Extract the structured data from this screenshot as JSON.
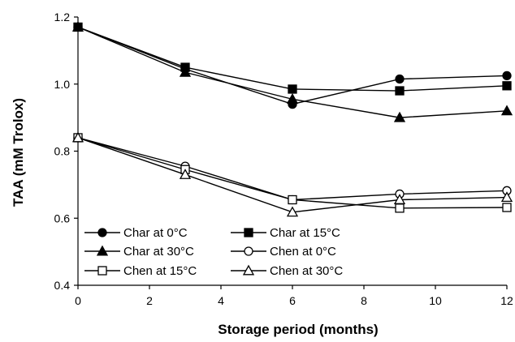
{
  "chart_data": {
    "type": "line",
    "xlabel": "Storage period (months)",
    "ylabel": "TAA (mM Trolox)",
    "xlim": [
      0,
      12
    ],
    "ylim": [
      0.4,
      1.2
    ],
    "x_ticks": [
      "0",
      "2",
      "4",
      "6",
      "8",
      "10",
      "12"
    ],
    "y_ticks": [
      "0.4",
      "0.6",
      "0.8",
      "1.0",
      "1.2"
    ],
    "grid": false,
    "legend_position": "bottom-left inside plot",
    "x": [
      0,
      3,
      6,
      9,
      12
    ],
    "series": [
      {
        "name": "Char at 0°C",
        "marker": "circle-filled",
        "values": [
          1.17,
          1.045,
          0.94,
          1.015,
          1.025
        ]
      },
      {
        "name": "Char at 15°C",
        "marker": "square-filled",
        "values": [
          1.17,
          1.05,
          0.985,
          0.98,
          0.995
        ]
      },
      {
        "name": "Char at 30°C",
        "marker": "triangle-filled",
        "values": [
          1.17,
          1.035,
          0.955,
          0.9,
          0.92
        ]
      },
      {
        "name": "Chen at 0°C",
        "marker": "circle-open",
        "values": [
          0.84,
          0.755,
          0.655,
          0.672,
          0.682
        ]
      },
      {
        "name": "Chen at 15°C",
        "marker": "square-open",
        "values": [
          0.84,
          0.745,
          0.655,
          0.63,
          0.632
        ]
      },
      {
        "name": "Chen at 30°C",
        "marker": "triangle-open",
        "values": [
          0.84,
          0.73,
          0.618,
          0.655,
          0.662
        ]
      }
    ]
  }
}
